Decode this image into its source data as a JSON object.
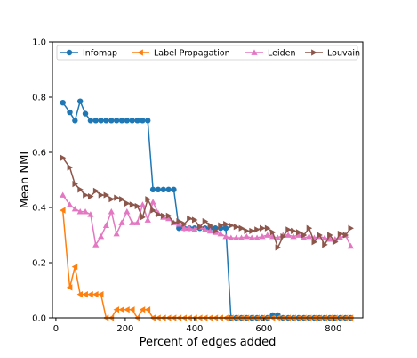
{
  "chart_data": {
    "type": "line",
    "xlabel": "Percent of edges added",
    "ylabel": "Mean NMI",
    "xlim": [
      -10,
      885
    ],
    "ylim": [
      0,
      1.0
    ],
    "xticks": [
      0,
      200,
      400,
      600,
      800
    ],
    "yticks": [
      0.0,
      0.2,
      0.4,
      0.6,
      0.8,
      1.0
    ],
    "ytick_labels": [
      "0.0",
      "0.2",
      "0.4",
      "0.6",
      "0.8",
      "1.0"
    ],
    "grid": false,
    "legend_position": "top",
    "series": [
      {
        "name": "Infomap",
        "color": "#1f77b4",
        "marker": "circle",
        "x": [
          20,
          40,
          55,
          70,
          85,
          100,
          115,
          130,
          145,
          160,
          175,
          190,
          205,
          220,
          235,
          250,
          265,
          280,
          295,
          310,
          325,
          340,
          355,
          370,
          385,
          400,
          415,
          430,
          445,
          460,
          475,
          490,
          505,
          520,
          535,
          550,
          565,
          580,
          595,
          610,
          625,
          640,
          655,
          670,
          685,
          700,
          715,
          730,
          745,
          760,
          775,
          790,
          805,
          820,
          835,
          850
        ],
        "y": [
          0.78,
          0.745,
          0.715,
          0.785,
          0.74,
          0.715,
          0.715,
          0.715,
          0.715,
          0.715,
          0.715,
          0.715,
          0.715,
          0.715,
          0.715,
          0.715,
          0.715,
          0.465,
          0.465,
          0.465,
          0.465,
          0.465,
          0.325,
          0.325,
          0.325,
          0.325,
          0.325,
          0.325,
          0.325,
          0.325,
          0.325,
          0.325,
          0.0,
          0.0,
          0.0,
          0.0,
          0.0,
          0.0,
          0.0,
          0.0,
          0.01,
          0.01,
          0.0,
          0.0,
          0.0,
          0.0,
          0.0,
          0.0,
          0.0,
          0.0,
          0.0,
          0.0,
          0.0,
          0.0,
          0.0,
          0.0
        ]
      },
      {
        "name": "Label Propagation",
        "color": "#ff7f0e",
        "marker": "triangle-left",
        "x": [
          20,
          40,
          55,
          70,
          85,
          100,
          115,
          130,
          145,
          160,
          175,
          190,
          205,
          220,
          235,
          250,
          265,
          280,
          295,
          310,
          325,
          340,
          355,
          370,
          385,
          400,
          415,
          430,
          445,
          460,
          475,
          490,
          505,
          520,
          535,
          550,
          565,
          580,
          595,
          610,
          625,
          640,
          655,
          670,
          685,
          700,
          715,
          730,
          745,
          760,
          775,
          790,
          805,
          820,
          835,
          850
        ],
        "y": [
          0.39,
          0.11,
          0.185,
          0.085,
          0.085,
          0.085,
          0.085,
          0.085,
          0.0,
          0.0,
          0.03,
          0.03,
          0.03,
          0.03,
          0.0,
          0.03,
          0.03,
          0.0,
          0.0,
          0.0,
          0.0,
          0.0,
          0.0,
          0.0,
          0.0,
          0.0,
          0.0,
          0.0,
          0.0,
          0.0,
          0.0,
          0.0,
          0.0,
          0.0,
          0.0,
          0.0,
          0.0,
          0.0,
          0.0,
          0.0,
          0.0,
          0.0,
          0.0,
          0.0,
          0.0,
          0.0,
          0.0,
          0.0,
          0.0,
          0.0,
          0.0,
          0.0,
          0.0,
          0.0,
          0.0,
          0.0
        ]
      },
      {
        "name": "Leiden",
        "color": "#e377c2",
        "marker": "triangle-up",
        "x": [
          20,
          40,
          55,
          70,
          85,
          100,
          115,
          130,
          145,
          160,
          175,
          190,
          205,
          220,
          235,
          250,
          265,
          280,
          295,
          310,
          325,
          340,
          355,
          370,
          385,
          400,
          415,
          430,
          445,
          460,
          475,
          490,
          505,
          520,
          535,
          550,
          565,
          580,
          595,
          610,
          625,
          640,
          655,
          670,
          685,
          700,
          715,
          730,
          745,
          760,
          775,
          790,
          805,
          820,
          835,
          850
        ],
        "y": [
          0.445,
          0.41,
          0.395,
          0.385,
          0.385,
          0.375,
          0.265,
          0.295,
          0.335,
          0.385,
          0.305,
          0.345,
          0.385,
          0.345,
          0.345,
          0.41,
          0.355,
          0.42,
          0.38,
          0.365,
          0.36,
          0.345,
          0.34,
          0.325,
          0.325,
          0.32,
          0.33,
          0.32,
          0.315,
          0.31,
          0.305,
          0.295,
          0.29,
          0.29,
          0.29,
          0.295,
          0.29,
          0.29,
          0.295,
          0.3,
          0.295,
          0.29,
          0.3,
          0.3,
          0.295,
          0.3,
          0.29,
          0.295,
          0.29,
          0.295,
          0.29,
          0.285,
          0.285,
          0.29,
          0.3,
          0.26
        ]
      },
      {
        "name": "Louvain",
        "color": "#8c564b",
        "marker": "triangle-right",
        "x": [
          20,
          40,
          55,
          70,
          85,
          100,
          115,
          130,
          145,
          160,
          175,
          190,
          205,
          220,
          235,
          250,
          265,
          280,
          295,
          310,
          325,
          340,
          355,
          370,
          385,
          400,
          415,
          430,
          445,
          460,
          475,
          490,
          505,
          520,
          535,
          550,
          565,
          580,
          595,
          610,
          625,
          640,
          655,
          670,
          685,
          700,
          715,
          730,
          745,
          760,
          775,
          790,
          805,
          820,
          835,
          850
        ],
        "y": [
          0.58,
          0.545,
          0.485,
          0.465,
          0.445,
          0.44,
          0.46,
          0.445,
          0.445,
          0.43,
          0.435,
          0.43,
          0.415,
          0.41,
          0.405,
          0.365,
          0.43,
          0.39,
          0.375,
          0.37,
          0.37,
          0.345,
          0.35,
          0.34,
          0.36,
          0.355,
          0.33,
          0.35,
          0.335,
          0.315,
          0.335,
          0.34,
          0.335,
          0.33,
          0.325,
          0.315,
          0.315,
          0.32,
          0.325,
          0.325,
          0.31,
          0.255,
          0.295,
          0.32,
          0.315,
          0.31,
          0.3,
          0.325,
          0.275,
          0.3,
          0.265,
          0.3,
          0.275,
          0.305,
          0.3,
          0.325
        ]
      }
    ]
  }
}
